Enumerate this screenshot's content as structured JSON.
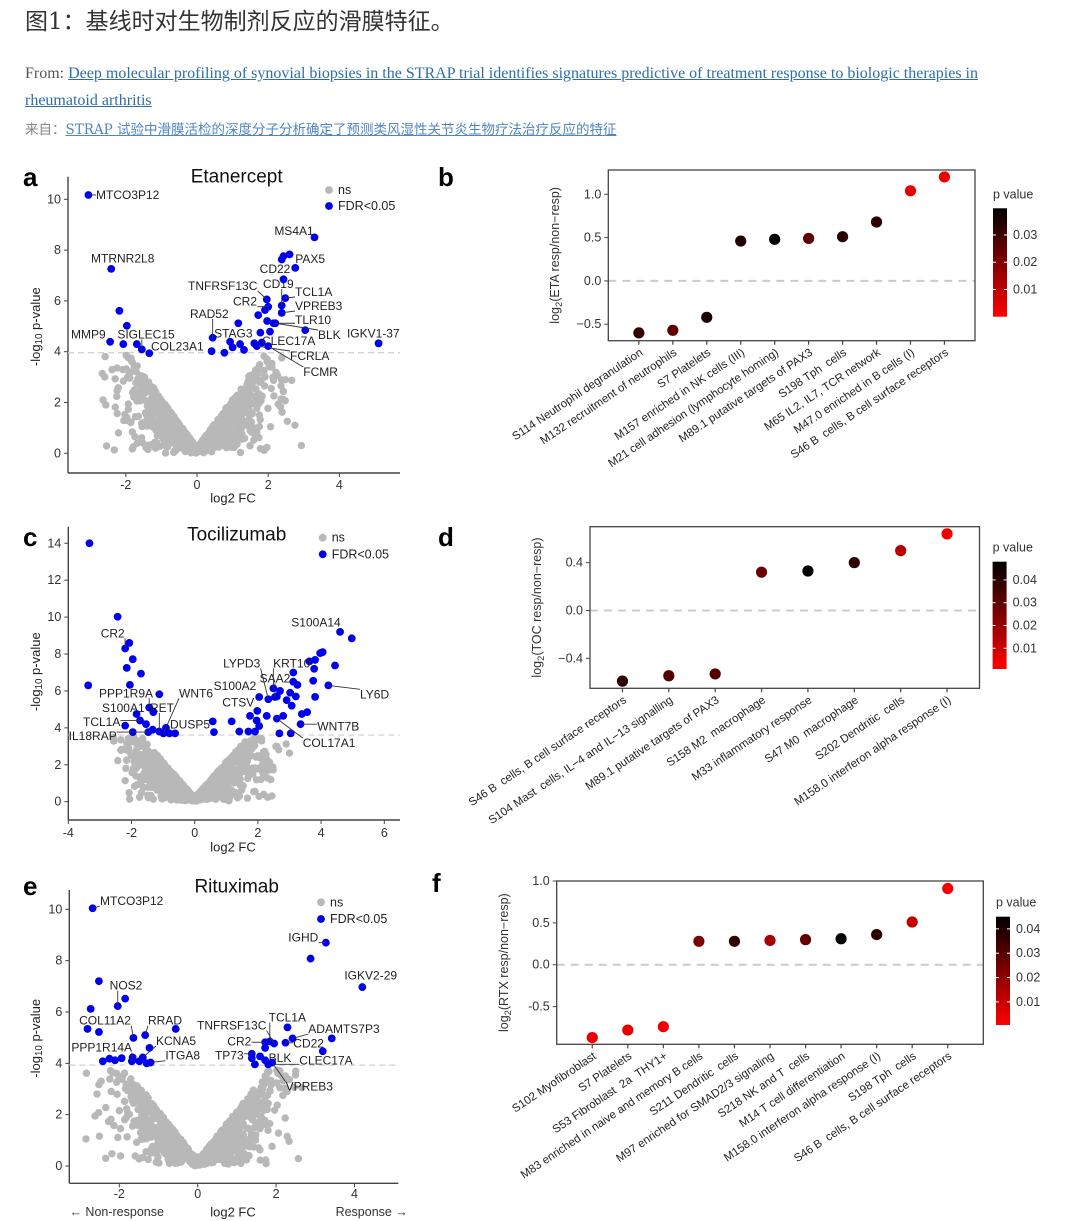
{
  "header": {
    "title": "图1：基线时对生物制剂反应的滑膜特征。",
    "from_label": "From:",
    "article_title_lines": [
      "Deep molecular profiling of synovial biopsies in the STRAP trial identifies signatures predictive of treatment response to biologic therapies in",
      "rheumatoid arthritis"
    ],
    "cn_label": "来自：",
    "cn_link": "STRAP 试验中滑膜活检的深度分子分析确定了预测类风湿性关节炎生物疗法治疗反应的特征"
  },
  "chart_data": [
    {
      "panel": "a",
      "type": "scatter",
      "title": "Etanercept",
      "xlabel": "log2 FC",
      "ylabel": "-log10 p-value",
      "xlim": [
        -3.62,
        5.7
      ],
      "ylim": [
        -0.78,
        10.9
      ],
      "xticks": [
        -2,
        0,
        2,
        4
      ],
      "yticks": [
        0,
        2,
        4,
        6,
        8,
        10
      ],
      "threshold": 3.96,
      "legend": {
        "ns": "ns",
        "sig": "FDR<0.05"
      },
      "colors": {
        "ns": "#b8b8b8",
        "sig": "#0000ee"
      },
      "ns_count": 1100,
      "significant": [
        [
          -2.18,
          5.61
        ],
        [
          -1.97,
          5.02
        ],
        [
          -2.07,
          4.3
        ],
        [
          -1.69,
          4.3
        ],
        [
          0.41,
          4.02
        ],
        [
          0.77,
          3.96
        ],
        [
          1.0,
          4.17
        ],
        [
          1.16,
          5.12
        ],
        [
          1.21,
          4.3
        ],
        [
          1.32,
          4.07
        ],
        [
          1.61,
          4.33
        ],
        [
          1.72,
          5.44
        ],
        [
          1.78,
          4.75
        ],
        [
          1.91,
          5.64
        ],
        [
          1.97,
          5.21
        ],
        [
          2.05,
          4.79
        ],
        [
          2.38,
          7.63
        ],
        [
          2.43,
          7.76
        ],
        [
          2.6,
          7.83
        ],
        [
          3.04,
          4.85
        ]
      ],
      "labeled": [
        {
          "gene": "MTCO3P12",
          "x": -3.05,
          "y": 10.17
        },
        {
          "gene": "MTRNR2L8",
          "x": -2.41,
          "y": 7.26
        },
        {
          "gene": "MMP9",
          "x": -2.44,
          "y": 4.39
        },
        {
          "gene": "SIGLEC15",
          "x": -1.55,
          "y": 4.09
        },
        {
          "gene": "COL23A1",
          "x": -1.34,
          "y": 3.94
        },
        {
          "gene": "RAD52",
          "x": 0.44,
          "y": 4.55
        },
        {
          "gene": "STAG3",
          "x": 0.93,
          "y": 4.39
        },
        {
          "gene": "CR2",
          "x": 2.0,
          "y": 5.77
        },
        {
          "gene": "TNFRSF13C",
          "x": 1.96,
          "y": 6.06
        },
        {
          "gene": "CD19",
          "x": 2.38,
          "y": 5.82
        },
        {
          "gene": "TCL1A",
          "x": 2.48,
          "y": 6.11
        },
        {
          "gene": "VPREB3",
          "x": 2.38,
          "y": 5.53
        },
        {
          "gene": "TLR10",
          "x": 2.15,
          "y": 5.12
        },
        {
          "gene": "BLK",
          "x": 2.2,
          "y": 5.12
        },
        {
          "gene": "CLEC17A",
          "x": 1.82,
          "y": 4.36
        },
        {
          "gene": "FCRLA",
          "x": 1.68,
          "y": 4.22
        },
        {
          "gene": "FCMR",
          "x": 2.0,
          "y": 4.22
        },
        {
          "gene": "MS4A1",
          "x": 3.3,
          "y": 8.5
        },
        {
          "gene": "PAX5",
          "x": 2.76,
          "y": 7.3
        },
        {
          "gene": "CD22",
          "x": 2.43,
          "y": 6.85
        },
        {
          "gene": "IGKV1-37",
          "x": 5.1,
          "y": 4.33
        }
      ]
    },
    {
      "panel": "b",
      "type": "scatter",
      "ylabel": "log2(ETA resp/non−resp)",
      "categories": [
        "S114 Neutrophil degranulation",
        "M132 recruitment of neutrophils",
        "S7 Platelets",
        "M157 enriched in NK cells (III)",
        "M21 cell adhesion (lymphocyte homing)",
        "M89.1 putative targets of PAX3",
        "S198 Tph  cells",
        "M65 IL2, IL7, TCR network",
        "M47.0 enriched in B cells (I)",
        "S46 B  cells, B cell surface receptors"
      ],
      "values": [
        -0.6,
        -0.57,
        -0.42,
        0.46,
        0.48,
        0.49,
        0.51,
        0.68,
        1.04,
        1.2
      ],
      "p_values": [
        0.03,
        0.022,
        0.035,
        0.033,
        0.039,
        0.022,
        0.032,
        0.031,
        0.002,
        0.001
      ],
      "ylim": [
        -0.69,
        1.28
      ],
      "yticks": [
        -0.5,
        0,
        0.5,
        1.0
      ],
      "ytick_labels": [
        "−0.5",
        "0.0",
        "0.5",
        "1.0"
      ],
      "reference_line": 0,
      "colorbar": {
        "title": "p value",
        "range": [
          0,
          0.0398
        ],
        "ticks": [
          0.01,
          0.02,
          0.03
        ],
        "tick_labels": [
          "0.01",
          "0.02",
          "0.03"
        ],
        "low_color": "#ff0000",
        "high_color": "#000000"
      }
    },
    {
      "panel": "c",
      "type": "scatter",
      "title": "Tocilizumab",
      "xlabel": "log2 FC",
      "ylabel": "-log10 p-value",
      "xlim": [
        -4,
        6.5
      ],
      "ylim": [
        -1.0,
        14.9
      ],
      "xticks": [
        -4,
        -2,
        0,
        2,
        4,
        6
      ],
      "yticks": [
        0,
        2,
        4,
        6,
        8,
        10,
        12,
        14
      ],
      "threshold": 3.61,
      "legend": {
        "ns": "ns",
        "sig": "FDR<0.05"
      },
      "colors": {
        "ns": "#b8b8b8",
        "sig": "#0000ee"
      },
      "ns_count": 1100,
      "significant": [
        [
          -3.33,
          14.0
        ],
        [
          -2.44,
          10.02
        ],
        [
          -2.07,
          8.6
        ],
        [
          -1.96,
          7.72
        ],
        [
          -2.15,
          7.25
        ],
        [
          -1.7,
          6.94
        ],
        [
          -2.05,
          6.33
        ],
        [
          -3.37,
          6.3
        ],
        [
          -1.12,
          5.82
        ],
        [
          -1.31,
          4.85
        ],
        [
          -1.54,
          4.2
        ],
        [
          -2.2,
          4.12
        ],
        [
          -1.96,
          3.77
        ],
        [
          -1.33,
          3.9
        ],
        [
          -0.91,
          4.0
        ],
        [
          -0.62,
          3.7
        ],
        [
          0.57,
          4.35
        ],
        [
          0.61,
          3.77
        ],
        [
          1.17,
          4.35
        ],
        [
          1.41,
          3.8
        ],
        [
          1.7,
          3.8
        ],
        [
          1.75,
          4.65
        ],
        [
          1.96,
          4.4
        ],
        [
          1.91,
          3.8
        ],
        [
          2.04,
          4.1
        ],
        [
          2.28,
          4.65
        ],
        [
          2.6,
          5.7
        ],
        [
          2.7,
          6.0
        ],
        [
          2.8,
          4.65
        ],
        [
          2.68,
          3.7
        ],
        [
          2.91,
          5.5
        ],
        [
          3.07,
          5.2
        ],
        [
          3.12,
          6.5
        ],
        [
          3.25,
          6.33
        ],
        [
          3.02,
          5.9
        ],
        [
          3.2,
          5.7
        ],
        [
          3.04,
          3.7
        ],
        [
          3.39,
          4.75
        ],
        [
          3.63,
          7.6
        ],
        [
          3.81,
          7.68
        ],
        [
          3.78,
          7.2
        ],
        [
          3.75,
          6.55
        ],
        [
          3.81,
          5.68
        ],
        [
          3.56,
          4.85
        ],
        [
          3.97,
          8.05
        ],
        [
          4.05,
          8.1
        ],
        [
          4.44,
          7.38
        ],
        [
          4.97,
          8.85
        ],
        [
          3.12,
          7.0
        ]
      ],
      "labeled": [
        {
          "gene": "CR2",
          "x": -2.2,
          "y": 8.3
        },
        {
          "gene": "PPP1R9A",
          "x": -1.44,
          "y": 5.1
        },
        {
          "gene": "S100A1",
          "x": -1.84,
          "y": 4.75
        },
        {
          "gene": "TCL1A",
          "x": -1.73,
          "y": 4.4
        },
        {
          "gene": "IL18RAP",
          "x": -1.47,
          "y": 3.77
        },
        {
          "gene": "RET",
          "x": -1.12,
          "y": 3.8
        },
        {
          "gene": "WNT6",
          "x": -0.99,
          "y": 3.7
        },
        {
          "gene": "DUSP5",
          "x": -0.8,
          "y": 3.7
        },
        {
          "gene": "S100A2",
          "x": 2.04,
          "y": 5.67
        },
        {
          "gene": "CTSV",
          "x": 1.98,
          "y": 4.92
        },
        {
          "gene": "LYPD3",
          "x": 2.33,
          "y": 5.55
        },
        {
          "gene": "SAA2",
          "x": 2.54,
          "y": 5.67
        },
        {
          "gene": "KRT10",
          "x": 2.49,
          "y": 6.14
        },
        {
          "gene": "S100A14",
          "x": 4.6,
          "y": 9.2
        },
        {
          "gene": "LY6D",
          "x": 4.23,
          "y": 6.3
        },
        {
          "gene": "WNT7B",
          "x": 3.35,
          "y": 4.2
        },
        {
          "gene": "COL17A1",
          "x": 2.6,
          "y": 4.5
        }
      ]
    },
    {
      "panel": "d",
      "type": "scatter",
      "ylabel": "log2(TOC resp/non−resp)",
      "categories": [
        "S46 B  cells, B cell surface receptors",
        "S104 Mast  cells, IL−4 and IL−13 signalling",
        "M89.1 putative targets of PAX3",
        "S158 M2  macrophage",
        "M33 inflammatory response",
        "S47 M0  macrophage",
        "S202 Dendritic  cells",
        "M158.0 interferon alpha response (I)"
      ],
      "values": [
        -0.59,
        -0.545,
        -0.53,
        0.32,
        0.33,
        0.4,
        0.5,
        0.64
      ],
      "p_values": [
        0.038,
        0.03,
        0.03,
        0.025,
        0.048,
        0.038,
        0.01,
        0.002
      ],
      "ylim": [
        -0.65,
        0.7
      ],
      "yticks": [
        -0.4,
        0,
        0.4
      ],
      "ytick_labels": [
        "−0.4",
        "0.0",
        "0.4"
      ],
      "reference_line": 0,
      "colorbar": {
        "title": "p value",
        "range": [
          0.0009,
          0.048
        ],
        "ticks": [
          0.01,
          0.02,
          0.03,
          0.04
        ],
        "tick_labels": [
          "0.01",
          "0.02",
          "0.03",
          "0.04"
        ],
        "low_color": "#ff0000",
        "high_color": "#000000"
      }
    },
    {
      "panel": "e",
      "type": "scatter",
      "title": "Rituximab",
      "xlabel": "log2 FC",
      "ylabel": "-log10 p-value",
      "xlim": [
        -3.28,
        5.12
      ],
      "ylim": [
        -0.68,
        10.75
      ],
      "xticks": [
        -2,
        0,
        2,
        4
      ],
      "yticks": [
        0,
        2,
        4,
        6,
        8,
        10
      ],
      "threshold": 3.93,
      "legend": {
        "ns": "ns",
        "sig": "FDR<0.05"
      },
      "colors": {
        "ns": "#b8b8b8",
        "sig": "#0000ee"
      },
      "direction_labels": {
        "left": "← Non-response",
        "right": "Response →"
      },
      "ns_count": 1100,
      "significant": [
        [
          -2.52,
          7.2
        ],
        [
          -1.85,
          6.52
        ],
        [
          -2.73,
          6.12
        ],
        [
          -2.81,
          5.34
        ],
        [
          -2.52,
          5.22
        ],
        [
          -0.56,
          5.34
        ],
        [
          -1.23,
          4.6
        ],
        [
          -2.42,
          4.08
        ],
        [
          -2.25,
          4.18
        ],
        [
          -2.11,
          4.12
        ],
        [
          -1.94,
          4.2
        ],
        [
          -1.66,
          4.23
        ],
        [
          -1.49,
          4.08
        ],
        [
          -1.3,
          4.0
        ],
        [
          2.88,
          8.08
        ],
        [
          2.29,
          5.4
        ],
        [
          3.42,
          4.97
        ],
        [
          3.19,
          4.47
        ],
        [
          1.38,
          4.2
        ],
        [
          1.59,
          4.27
        ],
        [
          1.46,
          3.96
        ],
        [
          1.72,
          4.12
        ]
      ],
      "labeled": [
        {
          "gene": "MTCO3P12",
          "x": -2.68,
          "y": 10.04
        },
        {
          "gene": "NOS2",
          "x": -2.04,
          "y": 6.23
        },
        {
          "gene": "COL11A2",
          "x": -1.64,
          "y": 4.99
        },
        {
          "gene": "RRAD",
          "x": -1.34,
          "y": 5.1
        },
        {
          "gene": "KCNA5",
          "x": -1.4,
          "y": 4.23
        },
        {
          "gene": "PPP1R14A",
          "x": -1.68,
          "y": 4.08
        },
        {
          "gene": "ITGA8",
          "x": -1.2,
          "y": 4.03
        },
        {
          "gene": "IGHD",
          "x": 3.27,
          "y": 8.7
        },
        {
          "gene": "IGKV2-29",
          "x": 4.2,
          "y": 6.97
        },
        {
          "gene": "TCL1A",
          "x": 1.84,
          "y": 4.85
        },
        {
          "gene": "TNFRSF13C",
          "x": 1.95,
          "y": 4.77
        },
        {
          "gene": "ADAMTS7P3",
          "x": 2.42,
          "y": 4.97
        },
        {
          "gene": "CR2",
          "x": 1.72,
          "y": 4.82
        },
        {
          "gene": "CD22",
          "x": 2.24,
          "y": 4.8
        },
        {
          "gene": "BLK",
          "x": 1.72,
          "y": 4.6
        },
        {
          "gene": "TP73",
          "x": 1.38,
          "y": 4.37
        },
        {
          "gene": "CLEC17A",
          "x": 1.8,
          "y": 3.96
        },
        {
          "gene": "VPREB3",
          "x": 1.9,
          "y": 4.03
        }
      ]
    },
    {
      "panel": "f",
      "type": "scatter",
      "ylabel": "log2(RTX resp/non−resp)",
      "categories": [
        "S102 Myofibroblast",
        "S7 Platelets",
        "S53 Fibroblast  2a  THY1+",
        "M83 enriched in naive and memory B cells",
        "S211 Dendritic  cells",
        "M97 enriched for SMAD2/3 signaling",
        "S218 NK and T  cells",
        "M14 T cell differentiation",
        "M158.0 interferon alpha response (I)",
        "S198 Tph  cells",
        "S46 B  cells, B cell surface receptors"
      ],
      "values": [
        -0.87,
        -0.78,
        -0.74,
        0.28,
        0.28,
        0.29,
        0.3,
        0.31,
        0.36,
        0.51,
        0.91
      ],
      "p_values": [
        0.002,
        0.003,
        0.002,
        0.02,
        0.035,
        0.012,
        0.025,
        0.045,
        0.035,
        0.008,
        0.001
      ],
      "ylim": [
        -0.95,
        1.0
      ],
      "yticks": [
        -0.5,
        0,
        0.5,
        1.0
      ],
      "ytick_labels": [
        "-0.5",
        "0.0",
        "0.5",
        "1.0"
      ],
      "reference_line": 0,
      "colorbar": {
        "title": "p value",
        "range": [
          0.0005,
          0.045
        ],
        "ticks": [
          0.01,
          0.02,
          0.03,
          0.04
        ],
        "tick_labels": [
          "0.01",
          "0.02",
          "0.03",
          "0.04"
        ],
        "low_color": "#ff0000",
        "high_color": "#000000"
      }
    }
  ]
}
